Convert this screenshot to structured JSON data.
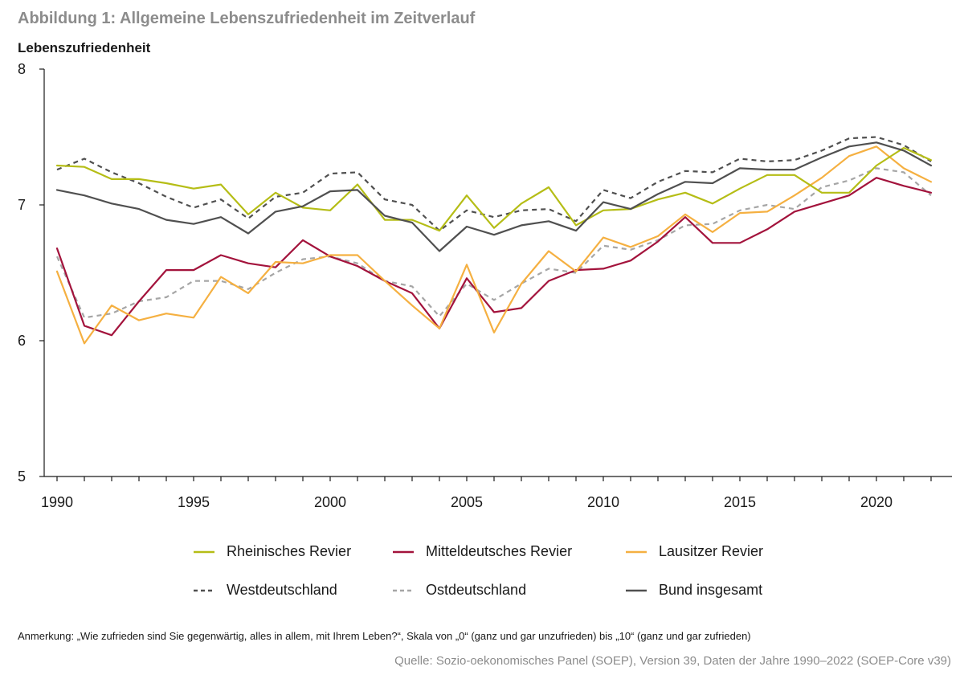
{
  "figure": {
    "title": "Abbildung 1: Allgemeine Lebenszufriedenheit im Zeitverlauf",
    "note": "Anmerkung: „Wie zufrieden sind Sie gegenwärtig, alles in allem, mit Ihrem Leben?“,  Skala von „0“ (ganz und gar unzufrieden) bis „10“ (ganz und gar zufrieden)",
    "source": "Quelle: Sozio-oekonomisches Panel (SOEP), Version 39, Daten der Jahre 1990–2022 (SOEP-Core v39)"
  },
  "chart_data": {
    "type": "line",
    "title": "Abbildung 1: Allgemeine Lebenszufriedenheit im Zeitverlauf",
    "ylabel": "Lebenszufriedenheit",
    "xlabel": "",
    "ylim": [
      5,
      8
    ],
    "xlim": [
      1990,
      2022
    ],
    "yticks": [
      5,
      6,
      7,
      8
    ],
    "xtick_labels": [
      1990,
      1995,
      2000,
      2005,
      2010,
      2015,
      2020
    ],
    "grid": false,
    "legend_position": "bottom",
    "x": [
      1990,
      1991,
      1992,
      1993,
      1994,
      1995,
      1996,
      1997,
      1998,
      1999,
      2000,
      2001,
      2002,
      2003,
      2004,
      2005,
      2006,
      2007,
      2008,
      2009,
      2010,
      2011,
      2012,
      2013,
      2014,
      2015,
      2016,
      2017,
      2018,
      2019,
      2020,
      2021,
      2022
    ],
    "series": [
      {
        "name": "Rheinisches Revier",
        "color": "#b5bd16",
        "dash": "solid",
        "values": [
          7.29,
          7.28,
          7.19,
          7.19,
          7.16,
          7.12,
          7.15,
          6.93,
          7.09,
          6.98,
          6.96,
          7.15,
          6.89,
          6.89,
          6.81,
          7.07,
          6.83,
          7.01,
          7.13,
          6.85,
          6.96,
          6.97,
          7.04,
          7.09,
          7.01,
          7.12,
          7.22,
          7.22,
          7.09,
          7.09,
          7.29,
          7.42,
          7.33
        ]
      },
      {
        "name": "Mitteldeutsches Revier",
        "color": "#a3133c",
        "dash": "solid",
        "values": [
          6.68,
          6.11,
          6.04,
          6.29,
          6.52,
          6.52,
          6.63,
          6.57,
          6.54,
          6.74,
          6.62,
          6.55,
          6.44,
          6.35,
          6.09,
          6.46,
          6.21,
          6.24,
          6.44,
          6.52,
          6.53,
          6.59,
          6.73,
          6.91,
          6.72,
          6.72,
          6.82,
          6.95,
          7.01,
          7.07,
          7.2,
          7.14,
          7.09
        ]
      },
      {
        "name": "Lausitzer Revier",
        "color": "#f5b041",
        "dash": "solid",
        "values": [
          6.51,
          5.98,
          6.26,
          6.15,
          6.2,
          6.17,
          6.47,
          6.35,
          6.58,
          6.57,
          6.63,
          6.63,
          6.44,
          6.26,
          6.09,
          6.56,
          6.06,
          6.42,
          6.66,
          6.51,
          6.76,
          6.69,
          6.77,
          6.93,
          6.8,
          6.94,
          6.95,
          7.07,
          7.2,
          7.36,
          7.43,
          7.27,
          7.17
        ]
      },
      {
        "name": "Westdeutschland",
        "color": "#505050",
        "dash": "dashed",
        "values": [
          7.26,
          7.34,
          7.24,
          7.16,
          7.06,
          6.98,
          7.04,
          6.9,
          7.06,
          7.09,
          7.23,
          7.24,
          7.04,
          7.0,
          6.81,
          6.96,
          6.91,
          6.96,
          6.97,
          6.88,
          7.11,
          7.05,
          7.17,
          7.25,
          7.24,
          7.34,
          7.32,
          7.33,
          7.4,
          7.49,
          7.5,
          7.44,
          7.32
        ]
      },
      {
        "name": "Ostdeutschland",
        "color": "#a6a6a6",
        "dash": "dashed",
        "values": [
          6.62,
          6.17,
          6.2,
          6.29,
          6.32,
          6.44,
          6.44,
          6.38,
          6.5,
          6.6,
          6.62,
          6.57,
          6.44,
          6.4,
          6.18,
          6.42,
          6.3,
          6.42,
          6.53,
          6.5,
          6.7,
          6.67,
          6.74,
          6.85,
          6.86,
          6.96,
          7.0,
          6.97,
          7.13,
          7.18,
          7.27,
          7.24,
          7.07
        ]
      },
      {
        "name": "Bund insgesamt",
        "color": "#505050",
        "dash": "solid",
        "values": [
          7.11,
          7.07,
          7.01,
          6.97,
          6.89,
          6.86,
          6.91,
          6.79,
          6.95,
          6.99,
          7.1,
          7.11,
          6.92,
          6.87,
          6.66,
          6.84,
          6.78,
          6.85,
          6.88,
          6.81,
          7.02,
          6.97,
          7.08,
          7.17,
          7.16,
          7.27,
          7.26,
          7.26,
          7.35,
          7.43,
          7.46,
          7.4,
          7.29
        ]
      }
    ]
  }
}
